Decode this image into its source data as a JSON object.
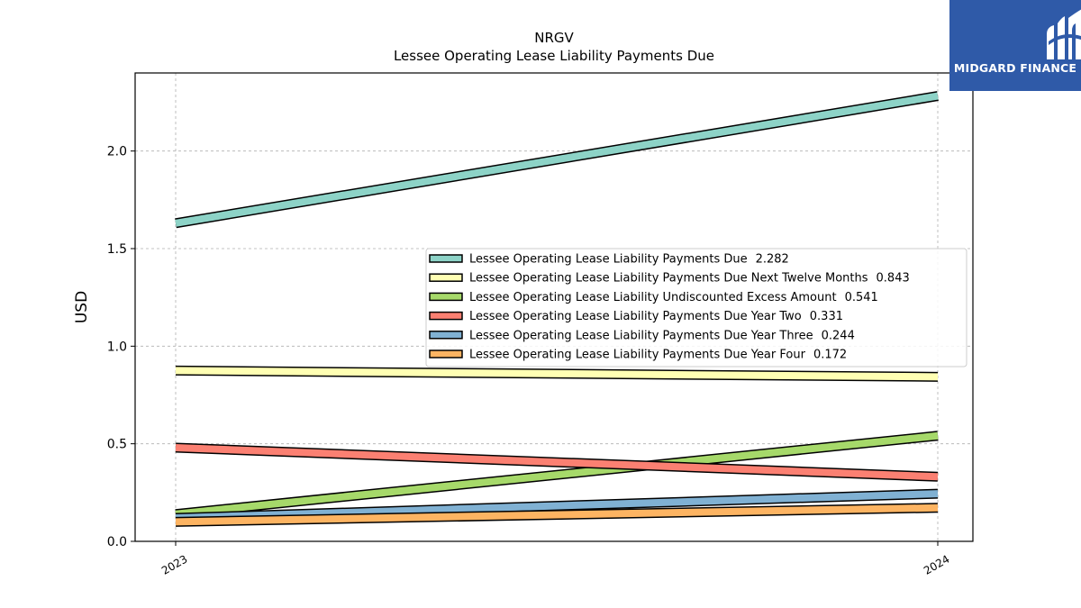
{
  "logo": {
    "text": "MIDGARD FINANCE",
    "icon": "midgard-logo-icon",
    "color": "#2f5aa8"
  },
  "chart_data": {
    "type": "line",
    "title": "NRGV",
    "subtitle": "Lessee Operating Lease Liability Payments Due",
    "xlabel": "",
    "ylabel": "USD",
    "categories": [
      "2023",
      "2024"
    ],
    "ylim": [
      0,
      2.4
    ],
    "yticks": [
      "0.0",
      "0.5",
      "1.0",
      "1.5",
      "2.0"
    ],
    "grid": true,
    "legend_position": "center-right",
    "series": [
      {
        "name": "Lessee Operating Lease Liability Payments Due",
        "legend_value": "2.282",
        "values": [
          1.63,
          2.282
        ],
        "color": "#8dd3c7"
      },
      {
        "name": "Lessee Operating Lease Liability Payments Due Next Twelve Months",
        "legend_value": "0.843",
        "values": [
          0.875,
          0.843
        ],
        "color": "#ffffb3"
      },
      {
        "name": "Lessee Operating Lease Liability Undiscounted Excess Amount",
        "legend_value": "0.541",
        "values": [
          0.14,
          0.541
        ],
        "color": "#a6d96a"
      },
      {
        "name": "Lessee Operating Lease Liability Payments Due Year Two",
        "legend_value": "0.331",
        "values": [
          0.48,
          0.331
        ],
        "color": "#fb8072"
      },
      {
        "name": "Lessee Operating Lease Liability Payments Due Year Three",
        "legend_value": "0.244",
        "values": [
          0.12,
          0.244
        ],
        "color": "#80b1d3"
      },
      {
        "name": "Lessee Operating Lease Liability Payments Due Year Four",
        "legend_value": "0.172",
        "values": [
          0.1,
          0.172
        ],
        "color": "#fdb462"
      }
    ]
  }
}
